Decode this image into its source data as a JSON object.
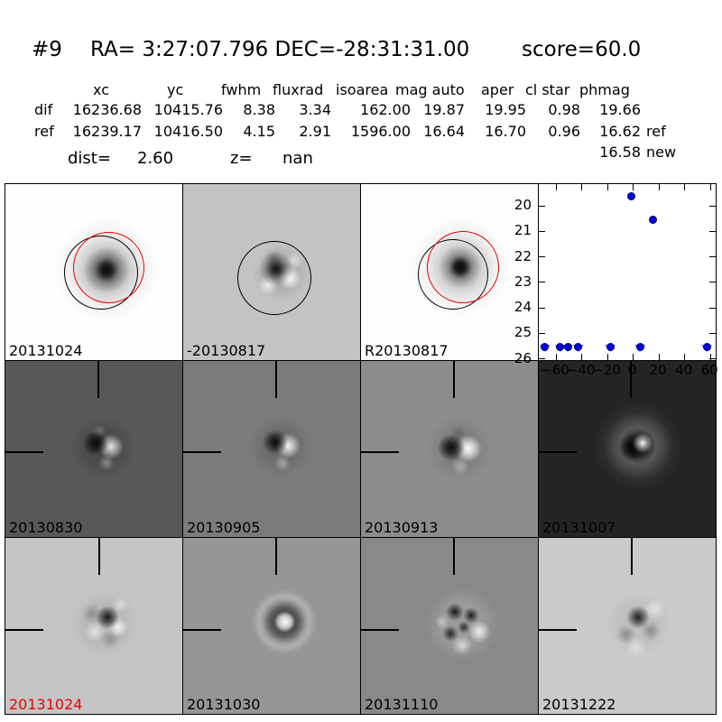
{
  "header": {
    "id": "#9",
    "coords": "RA= 3:27:07.796 DEC=-28:31:31.00",
    "score": "score=60.0"
  },
  "table": {
    "columns": [
      "xc",
      "yc",
      "fwhm",
      "fluxrad",
      "isoarea",
      "mag auto",
      "aper",
      "cl star",
      "phmag"
    ],
    "rows": [
      {
        "label": "dif",
        "values": [
          "16236.68",
          "10415.76",
          "8.38",
          "3.34",
          "162.00",
          "19.87",
          "19.95",
          "0.98",
          "19.66"
        ],
        "suffix": ""
      },
      {
        "label": "ref",
        "values": [
          "16239.17",
          "10416.50",
          "4.15",
          "2.91",
          "1596.00",
          "16.64",
          "16.70",
          "0.96",
          "16.62"
        ],
        "suffix": "ref"
      }
    ],
    "extra": {
      "phmag": "16.58",
      "suffix": "new"
    },
    "dist_label": "dist=",
    "dist_value": "2.60",
    "z_label": "z=",
    "z_value": "nan"
  },
  "panels": [
    {
      "label": "20131024",
      "label_color": "#000000"
    },
    {
      "label": "-20130817",
      "label_color": "#000000"
    },
    {
      "label": "R20130817",
      "label_color": "#000000"
    },
    {
      "label": "20130830",
      "label_color": "#000000"
    },
    {
      "label": "20130905",
      "label_color": "#000000"
    },
    {
      "label": "20130913",
      "label_color": "#000000"
    },
    {
      "label": "20131007",
      "label_color": "#000000"
    },
    {
      "label": "20131024",
      "label_color": "#ee0000"
    },
    {
      "label": "20131030",
      "label_color": "#000000"
    },
    {
      "label": "20131110",
      "label_color": "#000000"
    },
    {
      "label": "20131222",
      "label_color": "#000000"
    }
  ],
  "aperture_colors": {
    "catalog": "#000000",
    "candidate": "#e80000"
  },
  "chart_data": {
    "type": "scatter",
    "title": "",
    "xlabel": "",
    "ylabel": "",
    "xlim": [
      -73.4,
      64.1
    ],
    "ylim": [
      19.15,
      26.05
    ],
    "y_inverted": true,
    "grid": false,
    "legend": "none",
    "xticks": [
      -60,
      -40,
      -20,
      0,
      20,
      40,
      60
    ],
    "yticks": [
      20,
      21,
      22,
      23,
      24,
      25,
      26
    ],
    "series": [
      {
        "name": "detections",
        "marker": "circle",
        "color": "#0000e8",
        "points": [
          {
            "x": -1,
            "y": 19.67
          },
          {
            "x": 16,
            "y": 20.6
          }
        ]
      },
      {
        "name": "upper-limits",
        "marker": "circle-with-down-triangle",
        "color": "#0000e8",
        "limit_color": "#8080ff",
        "y": 25.57,
        "x": [
          -68,
          -56,
          -50,
          -42,
          -17,
          6,
          58
        ]
      }
    ]
  }
}
